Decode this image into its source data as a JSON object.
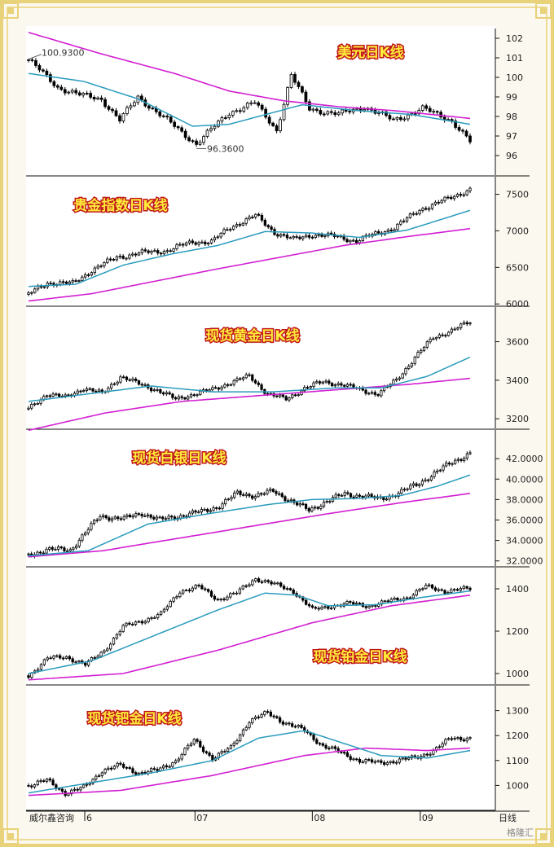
{
  "colors": {
    "frame": "#e8d27a",
    "ma_short": "#2a9bbd",
    "ma_long": "#d21fd2",
    "candle_up": "#ffffff",
    "candle_down": "#000000",
    "title_fill": "#ffeb3b",
    "title_stroke": "#c0181a"
  },
  "footer": {
    "source": "威尔鑫咨询",
    "period": "日线",
    "logo_text": "格隆汇"
  },
  "chart_data": [
    {
      "type": "candlestick",
      "title": "美元日K线",
      "ylim": [
        95,
        102.5
      ],
      "yticks": [
        96,
        97,
        98,
        99,
        100,
        101,
        102
      ],
      "annotations": [
        {
          "text": "100.9300",
          "value": 100.93,
          "candle": 0
        },
        {
          "text": "96.3600",
          "value": 96.36,
          "candle": 46
        }
      ],
      "waypoints": [
        [
          0,
          100.9
        ],
        [
          8,
          99.5
        ],
        [
          14,
          99.1
        ],
        [
          20,
          98.9
        ],
        [
          25,
          97.8
        ],
        [
          30,
          99.0
        ],
        [
          38,
          97.8
        ],
        [
          46,
          96.6
        ],
        [
          55,
          98.2
        ],
        [
          62,
          98.7
        ],
        [
          68,
          97.3
        ],
        [
          72,
          100.1
        ],
        [
          77,
          98.4
        ],
        [
          85,
          98.1
        ],
        [
          92,
          98.5
        ],
        [
          100,
          97.8
        ],
        [
          108,
          98.4
        ],
        [
          116,
          97.8
        ],
        [
          121,
          96.7
        ]
      ],
      "ma_short": [
        [
          0,
          100.2
        ],
        [
          15,
          99.8
        ],
        [
          30,
          98.9
        ],
        [
          45,
          97.5
        ],
        [
          55,
          97.6
        ],
        [
          65,
          98.1
        ],
        [
          75,
          98.6
        ],
        [
          90,
          98.3
        ],
        [
          105,
          98.1
        ],
        [
          121,
          97.6
        ]
      ],
      "ma_long": [
        [
          0,
          102.3
        ],
        [
          20,
          101.2
        ],
        [
          40,
          100.2
        ],
        [
          55,
          99.3
        ],
        [
          70,
          98.8
        ],
        [
          85,
          98.5
        ],
        [
          100,
          98.3
        ],
        [
          121,
          97.9
        ]
      ]
    },
    {
      "type": "candlestick",
      "title": "贵金指数日K线",
      "ylim": [
        5980,
        7740
      ],
      "yticks": [
        6000,
        6500,
        7000,
        7500
      ],
      "waypoints": [
        [
          0,
          6130
        ],
        [
          6,
          6290
        ],
        [
          14,
          6280
        ],
        [
          20,
          6460
        ],
        [
          28,
          6640
        ],
        [
          36,
          6700
        ],
        [
          44,
          6730
        ],
        [
          52,
          6850
        ],
        [
          58,
          6850
        ],
        [
          64,
          7050
        ],
        [
          72,
          7210
        ],
        [
          78,
          6980
        ],
        [
          84,
          6880
        ],
        [
          90,
          6950
        ],
        [
          98,
          6920
        ],
        [
          104,
          6860
        ],
        [
          110,
          6960
        ],
        [
          116,
          7040
        ],
        [
          124,
          7290
        ],
        [
          132,
          7420
        ],
        [
          140,
          7570
        ]
      ],
      "ma_short": [
        [
          0,
          6240
        ],
        [
          15,
          6270
        ],
        [
          30,
          6530
        ],
        [
          45,
          6680
        ],
        [
          60,
          6800
        ],
        [
          75,
          6990
        ],
        [
          90,
          6970
        ],
        [
          105,
          6910
        ],
        [
          120,
          7010
        ],
        [
          140,
          7280
        ]
      ],
      "ma_long": [
        [
          0,
          6040
        ],
        [
          20,
          6140
        ],
        [
          40,
          6310
        ],
        [
          60,
          6480
        ],
        [
          80,
          6640
        ],
        [
          100,
          6800
        ],
        [
          120,
          6920
        ],
        [
          140,
          7030
        ]
      ]
    },
    {
      "type": "candlestick",
      "title": "现货黄金日K线",
      "ylim": [
        3150,
        3780
      ],
      "yticks": [
        3200,
        3400,
        3600
      ],
      "waypoints": [
        [
          0,
          3250
        ],
        [
          6,
          3330
        ],
        [
          12,
          3310
        ],
        [
          18,
          3360
        ],
        [
          24,
          3330
        ],
        [
          30,
          3420
        ],
        [
          36,
          3380
        ],
        [
          42,
          3350
        ],
        [
          48,
          3300
        ],
        [
          54,
          3330
        ],
        [
          60,
          3350
        ],
        [
          66,
          3390
        ],
        [
          72,
          3420
        ],
        [
          78,
          3330
        ],
        [
          84,
          3300
        ],
        [
          90,
          3360
        ],
        [
          96,
          3390
        ],
        [
          102,
          3380
        ],
        [
          108,
          3350
        ],
        [
          114,
          3330
        ],
        [
          120,
          3400
        ],
        [
          126,
          3520
        ],
        [
          132,
          3620
        ],
        [
          138,
          3660
        ],
        [
          144,
          3700
        ]
      ],
      "ma_short": [
        [
          0,
          3290
        ],
        [
          20,
          3330
        ],
        [
          40,
          3370
        ],
        [
          60,
          3340
        ],
        [
          80,
          3340
        ],
        [
          100,
          3360
        ],
        [
          115,
          3360
        ],
        [
          130,
          3420
        ],
        [
          144,
          3520
        ]
      ],
      "ma_long": [
        [
          0,
          3140
        ],
        [
          25,
          3230
        ],
        [
          50,
          3290
        ],
        [
          75,
          3320
        ],
        [
          100,
          3350
        ],
        [
          125,
          3380
        ],
        [
          144,
          3410
        ]
      ]
    },
    {
      "type": "candlestick",
      "title": "现货白银日K线",
      "ylim": [
        31.5,
        44.8
      ],
      "yticks": [
        32,
        34,
        36,
        38,
        40,
        42
      ],
      "tick_format": "4dp",
      "waypoints": [
        [
          0,
          32.6
        ],
        [
          6,
          33.1
        ],
        [
          14,
          33.1
        ],
        [
          18,
          34.4
        ],
        [
          24,
          36.4
        ],
        [
          32,
          36.1
        ],
        [
          38,
          36.7
        ],
        [
          44,
          36.0
        ],
        [
          52,
          36.5
        ],
        [
          58,
          36.8
        ],
        [
          64,
          37.4
        ],
        [
          70,
          38.6
        ],
        [
          76,
          38.4
        ],
        [
          82,
          38.8
        ],
        [
          88,
          37.9
        ],
        [
          94,
          36.9
        ],
        [
          100,
          37.9
        ],
        [
          106,
          38.5
        ],
        [
          112,
          38.4
        ],
        [
          118,
          38.0
        ],
        [
          124,
          38.7
        ],
        [
          130,
          39.4
        ],
        [
          136,
          40.6
        ],
        [
          142,
          41.6
        ],
        [
          148,
          42.6
        ]
      ],
      "ma_short": [
        [
          0,
          32.5
        ],
        [
          20,
          33.0
        ],
        [
          40,
          35.6
        ],
        [
          60,
          36.6
        ],
        [
          80,
          37.5
        ],
        [
          95,
          38.0
        ],
        [
          110,
          38.1
        ],
        [
          125,
          38.4
        ],
        [
          137,
          39.3
        ],
        [
          148,
          40.4
        ]
      ],
      "ma_long": [
        [
          0,
          32.4
        ],
        [
          25,
          33.0
        ],
        [
          50,
          34.2
        ],
        [
          75,
          35.4
        ],
        [
          100,
          36.6
        ],
        [
          125,
          37.7
        ],
        [
          148,
          38.6
        ]
      ]
    },
    {
      "type": "candlestick",
      "title": "现货铂金日K线",
      "ylim": [
        950,
        1500
      ],
      "yticks": [
        1000,
        1200,
        1400
      ],
      "waypoints": [
        [
          0,
          990
        ],
        [
          6,
          1070
        ],
        [
          12,
          1080
        ],
        [
          18,
          1040
        ],
        [
          24,
          1110
        ],
        [
          30,
          1220
        ],
        [
          36,
          1250
        ],
        [
          42,
          1280
        ],
        [
          48,
          1390
        ],
        [
          54,
          1410
        ],
        [
          60,
          1350
        ],
        [
          66,
          1380
        ],
        [
          72,
          1450
        ],
        [
          78,
          1420
        ],
        [
          84,
          1390
        ],
        [
          90,
          1300
        ],
        [
          96,
          1320
        ],
        [
          102,
          1330
        ],
        [
          108,
          1320
        ],
        [
          114,
          1340
        ],
        [
          120,
          1360
        ],
        [
          126,
          1410
        ],
        [
          132,
          1390
        ],
        [
          140,
          1400
        ]
      ],
      "ma_short": [
        [
          0,
          1000
        ],
        [
          20,
          1060
        ],
        [
          40,
          1180
        ],
        [
          60,
          1300
        ],
        [
          75,
          1380
        ],
        [
          85,
          1370
        ],
        [
          95,
          1320
        ],
        [
          110,
          1325
        ],
        [
          125,
          1360
        ],
        [
          140,
          1390
        ]
      ],
      "ma_long": [
        [
          0,
          970
        ],
        [
          30,
          1000
        ],
        [
          60,
          1110
        ],
        [
          90,
          1240
        ],
        [
          115,
          1320
        ],
        [
          140,
          1370
        ]
      ]
    },
    {
      "type": "candlestick",
      "title": "现货钯金日K线",
      "ylim": [
        900,
        1400
      ],
      "yticks": [
        1000,
        1100,
        1200,
        1300
      ],
      "waypoints": [
        [
          0,
          1000
        ],
        [
          6,
          1020
        ],
        [
          12,
          970
        ],
        [
          18,
          990
        ],
        [
          24,
          1060
        ],
        [
          30,
          1080
        ],
        [
          36,
          1050
        ],
        [
          42,
          1060
        ],
        [
          48,
          1100
        ],
        [
          54,
          1180
        ],
        [
          60,
          1110
        ],
        [
          66,
          1150
        ],
        [
          72,
          1260
        ],
        [
          78,
          1290
        ],
        [
          84,
          1250
        ],
        [
          90,
          1220
        ],
        [
          96,
          1160
        ],
        [
          102,
          1130
        ],
        [
          108,
          1100
        ],
        [
          114,
          1090
        ],
        [
          120,
          1100
        ],
        [
          126,
          1110
        ],
        [
          132,
          1140
        ],
        [
          138,
          1190
        ],
        [
          144,
          1190
        ]
      ],
      "ma_short": [
        [
          0,
          970
        ],
        [
          20,
          1010
        ],
        [
          40,
          1050
        ],
        [
          60,
          1100
        ],
        [
          75,
          1190
        ],
        [
          90,
          1220
        ],
        [
          100,
          1180
        ],
        [
          115,
          1120
        ],
        [
          130,
          1110
        ],
        [
          144,
          1140
        ]
      ],
      "ma_long": [
        [
          0,
          960
        ],
        [
          30,
          980
        ],
        [
          60,
          1040
        ],
        [
          90,
          1120
        ],
        [
          110,
          1150
        ],
        [
          130,
          1140
        ],
        [
          144,
          1150
        ]
      ]
    }
  ],
  "x_axis": {
    "labels": [
      {
        "text": "6",
        "pos": 0.125
      },
      {
        "text": "07",
        "pos": 0.36
      },
      {
        "text": "08",
        "pos": 0.61
      },
      {
        "text": "09",
        "pos": 0.84
      }
    ]
  }
}
